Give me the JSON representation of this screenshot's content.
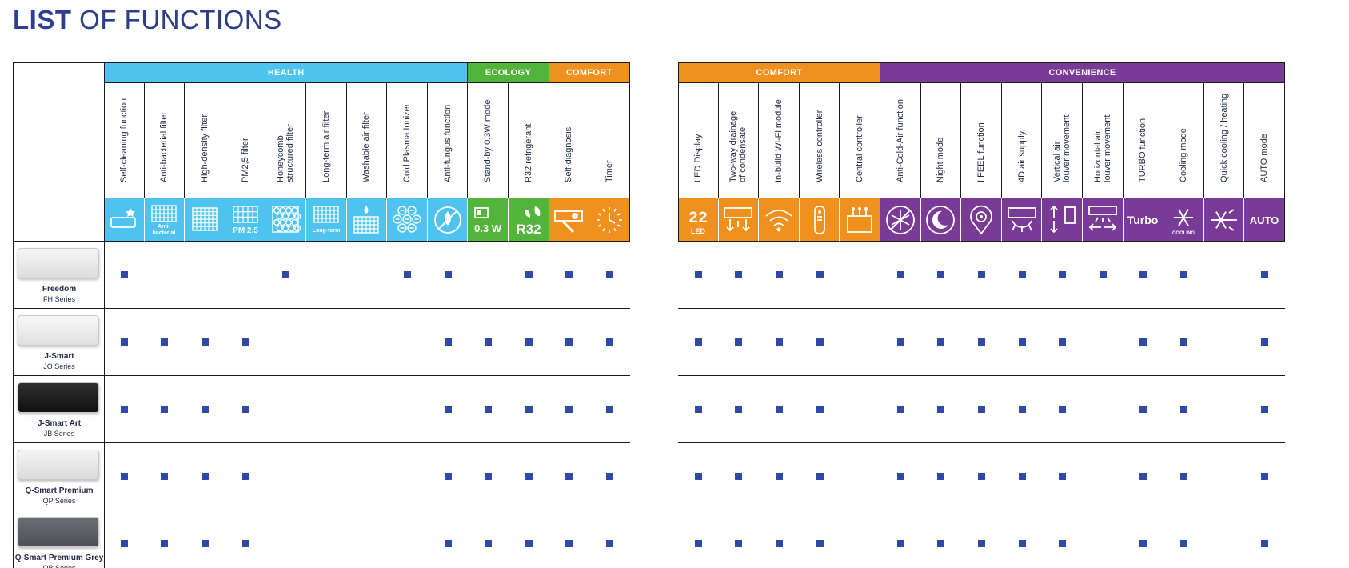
{
  "title": {
    "bold": "LIST",
    "rest": "OF FUNCTIONS"
  },
  "left_table": {
    "categories": [
      {
        "label": "HEALTH",
        "span": 9,
        "color": "#4ec3ef"
      },
      {
        "label": "ECOLOGY",
        "span": 2,
        "color": "#52b43a"
      },
      {
        "label": "COMFORT",
        "span": 2,
        "color": "#f0901e"
      }
    ],
    "columns": [
      {
        "label": "Self-cleaning function",
        "icon": "self-cleaning-icon",
        "icon_text": "",
        "color": "#4ec3ef"
      },
      {
        "label": "Anti-bacterial filter",
        "icon": "anti-bacterial-filter-icon",
        "icon_text": "Anti-\nbacterial",
        "color": "#4ec3ef"
      },
      {
        "label": "High-density filter",
        "icon": "high-density-filter-icon",
        "icon_text": "",
        "color": "#4ec3ef"
      },
      {
        "label": "PM2,5 filter",
        "icon": "pm25-filter-icon",
        "icon_text": "PM 2.5",
        "color": "#4ec3ef"
      },
      {
        "label": "Honeycomb\nstructured filter",
        "icon": "honeycomb-filter-icon",
        "icon_text": "",
        "color": "#4ec3ef"
      },
      {
        "label": "Long-term air filter",
        "icon": "long-term-filter-icon",
        "icon_text": "Long-term",
        "color": "#4ec3ef"
      },
      {
        "label": "Washable air filter",
        "icon": "washable-filter-icon",
        "icon_text": "",
        "color": "#4ec3ef"
      },
      {
        "label": "Cold Plasma Ionizer",
        "icon": "plasma-ionizer-icon",
        "icon_text": "",
        "color": "#4ec3ef"
      },
      {
        "label": "Anti-fungus function",
        "icon": "anti-fungus-icon",
        "icon_text": "",
        "color": "#4ec3ef"
      },
      {
        "label": "Stand-by 0.3W mode",
        "icon": "standby-icon",
        "icon_text": "0.3 W",
        "color": "#52b43a"
      },
      {
        "label": "R32 refrigerant",
        "icon": "r32-icon",
        "icon_text": "R32",
        "color": "#52b43a"
      },
      {
        "label": "Self-diagnosis",
        "icon": "self-diagnosis-icon",
        "icon_text": "",
        "color": "#f0901e"
      },
      {
        "label": "Timer",
        "icon": "timer-icon",
        "icon_text": "",
        "color": "#f0901e"
      }
    ],
    "rows": [
      [
        1,
        0,
        0,
        0,
        1,
        0,
        0,
        1,
        1,
        0,
        1,
        1,
        1
      ],
      [
        1,
        1,
        1,
        1,
        0,
        0,
        0,
        0,
        1,
        1,
        1,
        1,
        1
      ],
      [
        1,
        1,
        1,
        1,
        0,
        0,
        0,
        0,
        1,
        1,
        1,
        1,
        1
      ],
      [
        1,
        1,
        1,
        1,
        0,
        0,
        0,
        0,
        1,
        1,
        1,
        1,
        1
      ],
      [
        1,
        1,
        1,
        1,
        0,
        0,
        0,
        0,
        1,
        1,
        1,
        1,
        1
      ]
    ]
  },
  "right_table": {
    "categories": [
      {
        "label": "COMFORT",
        "span": 5,
        "color": "#f0901e"
      },
      {
        "label": "CONVENIENCE",
        "span": 10,
        "color": "#7a3b96"
      }
    ],
    "columns": [
      {
        "label": "LED Display",
        "icon": "led-display-icon",
        "icon_text": "LED",
        "color": "#f0901e"
      },
      {
        "label": "Two-way drainage\nof condensate",
        "icon": "drainage-icon",
        "icon_text": "",
        "color": "#f0901e"
      },
      {
        "label": "In-build Wi-Fi module",
        "icon": "wifi-icon",
        "icon_text": "",
        "color": "#f0901e"
      },
      {
        "label": "Wireless controller",
        "icon": "remote-control-icon",
        "icon_text": "",
        "color": "#f0901e"
      },
      {
        "label": "Central controller",
        "icon": "central-controller-icon",
        "icon_text": "",
        "color": "#f0901e"
      },
      {
        "label": "Anti-Cold-Air function",
        "icon": "anti-cold-air-icon",
        "icon_text": "",
        "color": "#7a3b96"
      },
      {
        "label": "Night mode",
        "icon": "night-mode-icon",
        "icon_text": "",
        "color": "#7a3b96"
      },
      {
        "label": "I FEEL function",
        "icon": "i-feel-icon",
        "icon_text": "",
        "color": "#7a3b96"
      },
      {
        "label": "4D air supply",
        "icon": "air-supply-icon",
        "icon_text": "",
        "color": "#7a3b96"
      },
      {
        "label": "Vertical air\nlouver movement",
        "icon": "vertical-louver-icon",
        "icon_text": "",
        "color": "#7a3b96"
      },
      {
        "label": "Horizontal air\nlouver movement",
        "icon": "horizontal-louver-icon",
        "icon_text": "",
        "color": "#7a3b96"
      },
      {
        "label": "TURBO function",
        "icon": "turbo-icon",
        "icon_text": "Turbo",
        "color": "#7a3b96"
      },
      {
        "label": "Cooling mode",
        "icon": "cooling-icon",
        "icon_text": "COOLING",
        "color": "#7a3b96"
      },
      {
        "label": "Quick cooling / heating",
        "icon": "quick-cool-heat-icon",
        "icon_text": "",
        "color": "#7a3b96"
      },
      {
        "label": "AUTO mode",
        "icon": "auto-mode-icon",
        "icon_text": "AUTO",
        "color": "#7a3b96"
      }
    ],
    "rows": [
      [
        1,
        1,
        1,
        1,
        0,
        1,
        1,
        1,
        1,
        1,
        1,
        1,
        1,
        0,
        1
      ],
      [
        1,
        1,
        1,
        1,
        0,
        1,
        1,
        1,
        1,
        1,
        0,
        1,
        1,
        0,
        1
      ],
      [
        1,
        1,
        1,
        1,
        0,
        1,
        1,
        1,
        1,
        1,
        0,
        1,
        1,
        0,
        1
      ],
      [
        1,
        1,
        1,
        1,
        0,
        1,
        1,
        1,
        1,
        1,
        0,
        1,
        1,
        0,
        1
      ],
      [
        1,
        1,
        1,
        1,
        0,
        1,
        1,
        1,
        1,
        1,
        0,
        1,
        1,
        0,
        1
      ]
    ]
  },
  "products": [
    {
      "name": "Freedom",
      "series": "FH Series",
      "body_color": "#f4f4f4"
    },
    {
      "name": "J-Smart",
      "series": "JO Series",
      "body_color": "#f7f7f7"
    },
    {
      "name": "J-Smart Art",
      "series": "JB Series",
      "body_color": "#111111"
    },
    {
      "name": "Q-Smart Premium",
      "series": "QP Series",
      "body_color": "#f2f2f2"
    },
    {
      "name": "Q-Smart Premium Grey",
      "series": "QB Series",
      "body_color": "#55585f"
    }
  ]
}
